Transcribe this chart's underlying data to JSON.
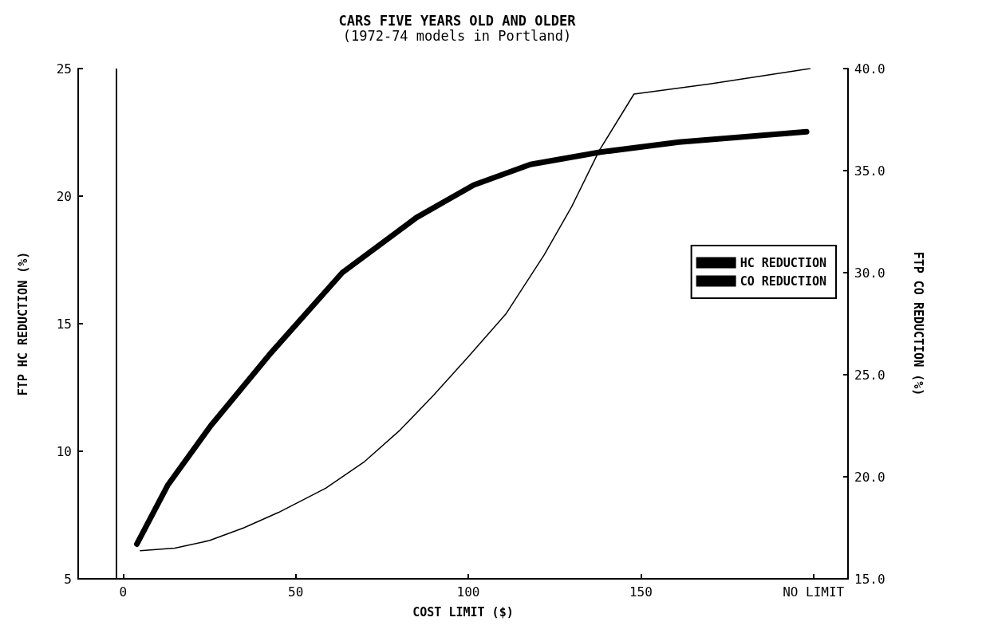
{
  "chart_data": {
    "type": "line",
    "title": "CARS FIVE YEARS OLD AND OLDER",
    "subtitle": "(1972-74 models in Portland)",
    "xlabel": "COST LIMIT ($)",
    "ylabel": "FTP HC REDUCTION (%)",
    "y2label": "FTP CO REDUCTION (%)",
    "xlim": [
      -13,
      210
    ],
    "xticks": [
      0,
      50,
      100,
      150,
      {
        "value": 200,
        "label": "NO LIMIT"
      }
    ],
    "ylim": [
      5,
      25
    ],
    "yticks": [
      5,
      10,
      15,
      20,
      25
    ],
    "y2lim": [
      15,
      40
    ],
    "y2ticks": [
      {
        "value": 15,
        "label": "15.0"
      },
      {
        "value": 20,
        "label": "20.0"
      },
      {
        "value": 25,
        "label": "25.0"
      },
      {
        "value": 30,
        "label": "30.0"
      },
      {
        "value": 35,
        "label": "35.0"
      },
      {
        "value": 40,
        "label": "40.0"
      }
    ],
    "grid": false,
    "legend": "right",
    "marker": "none",
    "ref_lines": [
      {
        "axis": "x",
        "value": -2
      }
    ],
    "series": [
      {
        "name": "HC REDUCTION",
        "color": "#000000",
        "x": [
          5,
          15,
          25,
          35,
          45,
          58.7,
          70,
          80,
          90,
          100,
          111,
          122,
          130,
          138,
          148,
          170,
          199
        ],
        "values": [
          6.1,
          6.2,
          6.5,
          7.0,
          7.6,
          8.55,
          9.6,
          10.8,
          12.2,
          13.7,
          15.4,
          17.7,
          19.6,
          21.8,
          24.0,
          24.4,
          25.0
        ]
      },
      {
        "name": "CO REDUCTION",
        "color": "#000000",
        "axis": "y2",
        "x": [
          4,
          13,
          25.4,
          43,
          63.5,
          85,
          101.6,
          118,
          138,
          161,
          198
        ],
        "values": [
          16.7,
          19.6,
          22.5,
          26.1,
          30.0,
          32.7,
          34.3,
          35.3,
          35.9,
          36.4,
          36.9
        ]
      }
    ]
  }
}
